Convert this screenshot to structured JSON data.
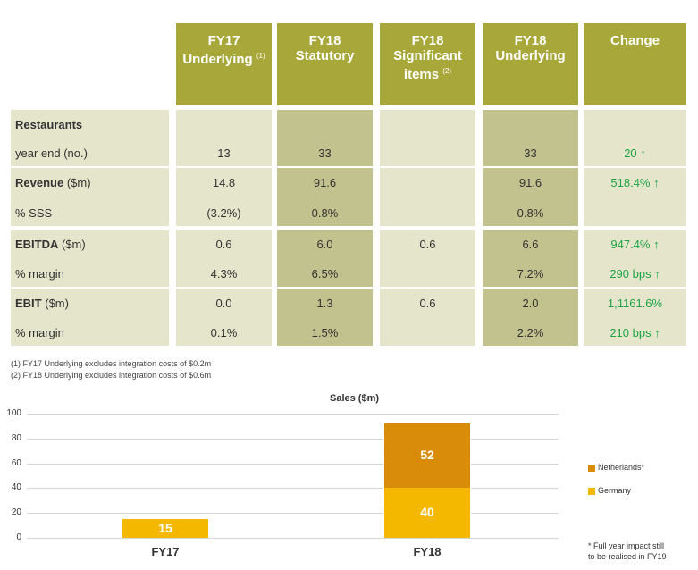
{
  "table": {
    "headers": [
      {
        "line1": "FY17",
        "line2": "Underlying",
        "sup": "(1)"
      },
      {
        "line1": "FY18",
        "line2": "Statutory",
        "sup": ""
      },
      {
        "line1": "FY18",
        "line2": "Significant",
        "line3": "items",
        "sup": "(2)"
      },
      {
        "line1": "FY18",
        "line2": "Underlying",
        "sup": ""
      },
      {
        "line1": "Change",
        "line2": "",
        "sup": ""
      }
    ],
    "rows": [
      {
        "label_bold": "Restaurants",
        "label_rest": "",
        "cells": [
          "",
          "",
          "",
          "",
          ""
        ]
      },
      {
        "label_bold": "",
        "label_rest": "year end (no.)",
        "cells": [
          "13",
          "33",
          "",
          "33",
          "20 ↑"
        ]
      },
      {
        "label_bold": "Revenue",
        "label_rest": " ($m)",
        "cells": [
          "14.8",
          "91.6",
          "",
          "91.6",
          "518.4% ↑"
        ]
      },
      {
        "label_bold": "",
        "label_rest": "% SSS",
        "cells": [
          "(3.2%)",
          "0.8%",
          "",
          "0.8%",
          ""
        ]
      },
      {
        "label_bold": "EBITDA",
        "label_rest": " ($m)",
        "cells": [
          "0.6",
          "6.0",
          "0.6",
          "6.6",
          "947.4% ↑"
        ]
      },
      {
        "label_bold": "",
        "label_rest": "% margin",
        "cells": [
          "4.3%",
          "6.5%",
          "",
          "7.2%",
          "290 bps ↑"
        ]
      },
      {
        "label_bold": "EBIT",
        "label_rest": " ($m)",
        "cells": [
          "0.0",
          "1.3",
          "0.6",
          "2.0",
          "1,1161.6%"
        ]
      },
      {
        "label_bold": "",
        "label_rest": "% margin",
        "cells": [
          "0.1%",
          "1.5%",
          "",
          "2.2%",
          "210 bps ↑"
        ]
      }
    ],
    "footnotes": [
      "(1)   FY17 Underlying excludes integration costs of $0.2m",
      "(2)   FY18 Underlying excludes integration costs of $0.6m"
    ],
    "colors": {
      "header": "#a8a83a",
      "light": "#e5e5cc",
      "dark": "#c2c28f",
      "change": "#1fa344"
    }
  },
  "chart_data": {
    "type": "bar",
    "stacked": true,
    "title": "Sales ($m)",
    "categories": [
      "FY17",
      "FY18"
    ],
    "series": [
      {
        "name": "Germany",
        "values": [
          15,
          40
        ],
        "color": "#f5b800"
      },
      {
        "name": "Netherlands*",
        "values": [
          0,
          52
        ],
        "color": "#d98c0a"
      }
    ],
    "data_labels": [
      [
        "15",
        ""
      ],
      [
        "40",
        "52"
      ]
    ],
    "ylim": [
      0,
      100
    ],
    "yticks": [
      0,
      20,
      40,
      60,
      80,
      100
    ],
    "grid": true,
    "legend": "right",
    "note_line1": "* Full year impact still",
    "note_line2": "to be realised in FY19"
  }
}
